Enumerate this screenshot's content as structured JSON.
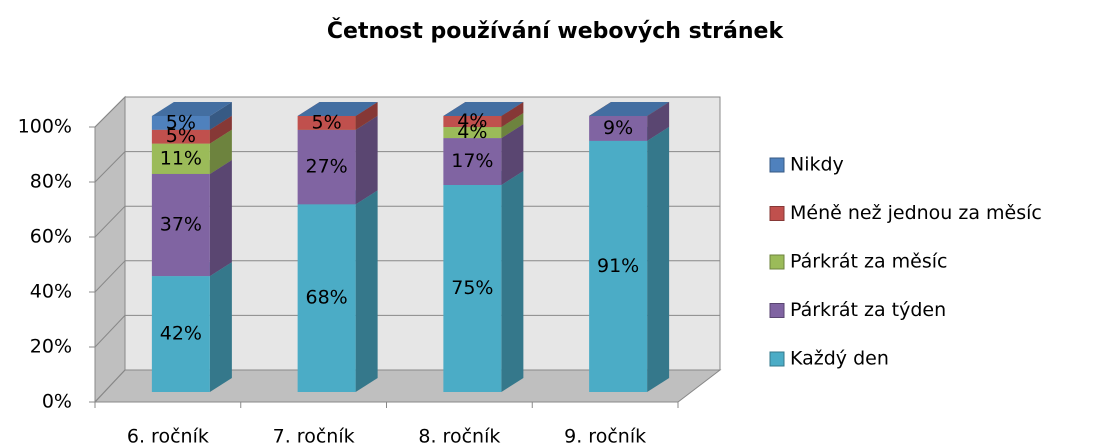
{
  "chart_data": {
    "type": "bar",
    "stacked": true,
    "title": "Četnost používání webových stránek",
    "categories": [
      "6. ročník",
      "7. ročník",
      "8. ročník",
      "9. ročník"
    ],
    "series": [
      {
        "name": "Každý den",
        "color": "#4bacc6",
        "values": [
          42,
          68,
          75,
          91
        ],
        "value_labels": [
          "42%",
          "68%",
          "75%",
          "91%"
        ]
      },
      {
        "name": "Párkrát za týden",
        "color": "#8064a2",
        "values": [
          37,
          27,
          17,
          9
        ],
        "value_labels": [
          "37%",
          "27%",
          "17%",
          "9%"
        ]
      },
      {
        "name": "Párkrát za měsíc",
        "color": "#9bbb59",
        "values": [
          11,
          0,
          4,
          0
        ],
        "value_labels": [
          "11%",
          null,
          "4%",
          null
        ]
      },
      {
        "name": "Méně než jednou za měsíc",
        "color": "#c0504d",
        "values": [
          5,
          5,
          4,
          0
        ],
        "value_labels": [
          "5%",
          "5%",
          "4%",
          null
        ]
      },
      {
        "name": "Nikdy",
        "color": "#4f81bd",
        "values": [
          5,
          0,
          0,
          0
        ],
        "value_labels": [
          "5%",
          null,
          null,
          null
        ]
      }
    ],
    "ylim": [
      0,
      100
    ],
    "yticks": [
      {
        "value": 0,
        "label": "0%"
      },
      {
        "value": 20,
        "label": "20%"
      },
      {
        "value": 40,
        "label": "40%"
      },
      {
        "value": 60,
        "label": "60%"
      },
      {
        "value": 80,
        "label": "80%"
      },
      {
        "value": 100,
        "label": "100%"
      }
    ],
    "grid": true,
    "legend": "right"
  }
}
